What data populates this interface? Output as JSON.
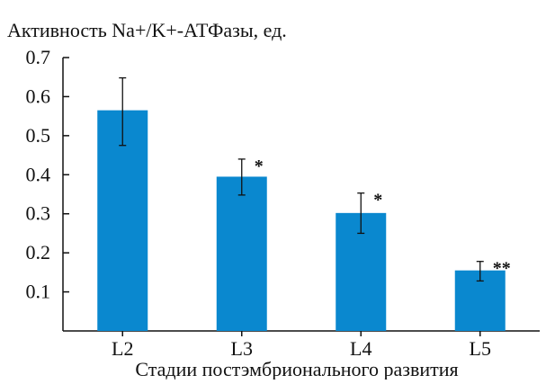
{
  "chart_data": {
    "type": "bar",
    "title": "Активность Na+/K+-АТФазы, ед.",
    "xlabel": "Стадии постэмбрионального развития",
    "ylabel": "",
    "categories": [
      "L2",
      "L3",
      "L4",
      "L5"
    ],
    "values": [
      0.565,
      0.395,
      0.302,
      0.155
    ],
    "error_low": [
      0.475,
      0.348,
      0.25,
      0.128
    ],
    "error_high": [
      0.648,
      0.44,
      0.353,
      0.178
    ],
    "annotations": [
      "",
      "*",
      "*",
      "**"
    ],
    "ylim": [
      0,
      0.7
    ],
    "y_ticks": [
      "0.1",
      "0.2",
      "0.3",
      "0.4",
      "0.5",
      "0.6",
      "0.7"
    ],
    "grid": false,
    "bar_color": "#0a88cf"
  }
}
